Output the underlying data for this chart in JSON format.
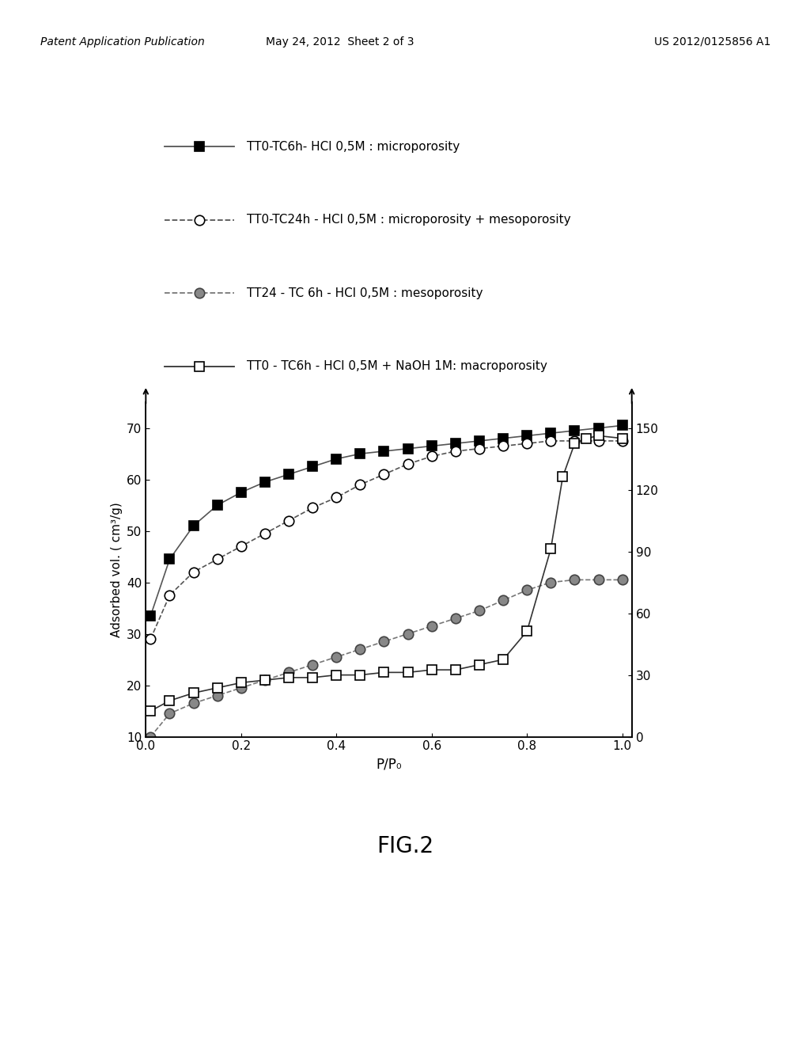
{
  "header_left": "Patent Application Publication",
  "header_mid": "May 24, 2012  Sheet 2 of 3",
  "header_right": "US 2012/0125856 A1",
  "fig_label": "FIG.2",
  "ylabel_left": "Adsorbed vol. ( cm³/g)",
  "xlabel": "P/P₀",
  "ylim_left": [
    10,
    75
  ],
  "xlim": [
    0.0,
    1.02
  ],
  "yticks_left": [
    10,
    20,
    30,
    40,
    50,
    60,
    70
  ],
  "yticks_right": [
    0,
    30,
    60,
    90,
    120,
    150
  ],
  "xticks": [
    0.0,
    0.2,
    0.4,
    0.6,
    0.8,
    1.0
  ],
  "series": [
    {
      "label": "TT0-TC6h- HCl 0,5M : microporosity",
      "marker": "s",
      "marker_fill": "black",
      "marker_edge": "black",
      "linestyle": "-",
      "linecolor": "#555555",
      "x": [
        0.01,
        0.05,
        0.1,
        0.15,
        0.2,
        0.25,
        0.3,
        0.35,
        0.4,
        0.45,
        0.5,
        0.55,
        0.6,
        0.65,
        0.7,
        0.75,
        0.8,
        0.85,
        0.9,
        0.95,
        1.0
      ],
      "y": [
        33.5,
        44.5,
        51.0,
        55.0,
        57.5,
        59.5,
        61.0,
        62.5,
        64.0,
        65.0,
        65.5,
        66.0,
        66.5,
        67.0,
        67.5,
        68.0,
        68.5,
        69.0,
        69.5,
        70.0,
        70.5
      ]
    },
    {
      "label": "TT0-TC24h - HCl 0,5M : microporosity + mesoporosity",
      "marker": "o",
      "marker_fill": "white",
      "marker_edge": "black",
      "linestyle": "--",
      "linecolor": "#555555",
      "x": [
        0.01,
        0.05,
        0.1,
        0.15,
        0.2,
        0.25,
        0.3,
        0.35,
        0.4,
        0.45,
        0.5,
        0.55,
        0.6,
        0.65,
        0.7,
        0.75,
        0.8,
        0.85,
        0.9,
        0.95,
        1.0
      ],
      "y": [
        29.0,
        37.5,
        42.0,
        44.5,
        47.0,
        49.5,
        52.0,
        54.5,
        56.5,
        59.0,
        61.0,
        63.0,
        64.5,
        65.5,
        66.0,
        66.5,
        67.0,
        67.5,
        67.5,
        67.5,
        67.5
      ]
    },
    {
      "label": "TT24 - TC 6h - HCl 0,5M : mesoporosity",
      "marker": "o",
      "marker_fill": "#888888",
      "marker_edge": "#444444",
      "linestyle": "--",
      "linecolor": "#777777",
      "x": [
        0.01,
        0.05,
        0.1,
        0.15,
        0.2,
        0.25,
        0.3,
        0.35,
        0.4,
        0.45,
        0.5,
        0.55,
        0.6,
        0.65,
        0.7,
        0.75,
        0.8,
        0.85,
        0.9,
        0.95,
        1.0
      ],
      "y": [
        10.0,
        14.5,
        16.5,
        18.0,
        19.5,
        21.0,
        22.5,
        24.0,
        25.5,
        27.0,
        28.5,
        30.0,
        31.5,
        33.0,
        34.5,
        36.5,
        38.5,
        40.0,
        40.5,
        40.5,
        40.5
      ]
    },
    {
      "label": "TT0 - TC6h - HCl 0,5M + NaOH 1M: macroporosity",
      "marker": "s",
      "marker_fill": "white",
      "marker_edge": "black",
      "linestyle": "-",
      "linecolor": "#333333",
      "x": [
        0.01,
        0.05,
        0.1,
        0.15,
        0.2,
        0.25,
        0.3,
        0.35,
        0.4,
        0.45,
        0.5,
        0.55,
        0.6,
        0.65,
        0.7,
        0.75,
        0.8,
        0.85,
        0.875,
        0.9,
        0.925,
        0.95,
        1.0
      ],
      "y": [
        15.0,
        17.0,
        18.5,
        19.5,
        20.5,
        21.0,
        21.5,
        21.5,
        22.0,
        22.0,
        22.5,
        22.5,
        23.0,
        23.0,
        24.0,
        25.0,
        30.5,
        46.5,
        60.5,
        67.0,
        68.0,
        68.5,
        68.0
      ]
    }
  ],
  "background_color": "#ffffff",
  "fig_bg": "#ffffff",
  "legend_labels": [
    "TT0-TC6h- HCl 0,5M : microporosity",
    "TT0-TC24h - HCl 0,5M : microporosity + mesoporosity",
    "TT24 - TC 6h - HCl 0,5M : mesoporosity",
    "TT0 - TC6h - HCl 0,5M + NaOH 1M: macroporosity"
  ],
  "legend_markers": [
    "s",
    "o",
    "o",
    "s"
  ],
  "legend_fills": [
    "black",
    "white",
    "#888888",
    "white"
  ],
  "legend_edges": [
    "black",
    "black",
    "#444444",
    "black"
  ],
  "legend_linestyles": [
    "-",
    "--",
    "--",
    "-"
  ],
  "legend_linecolors": [
    "#555555",
    "#555555",
    "#777777",
    "#333333"
  ]
}
